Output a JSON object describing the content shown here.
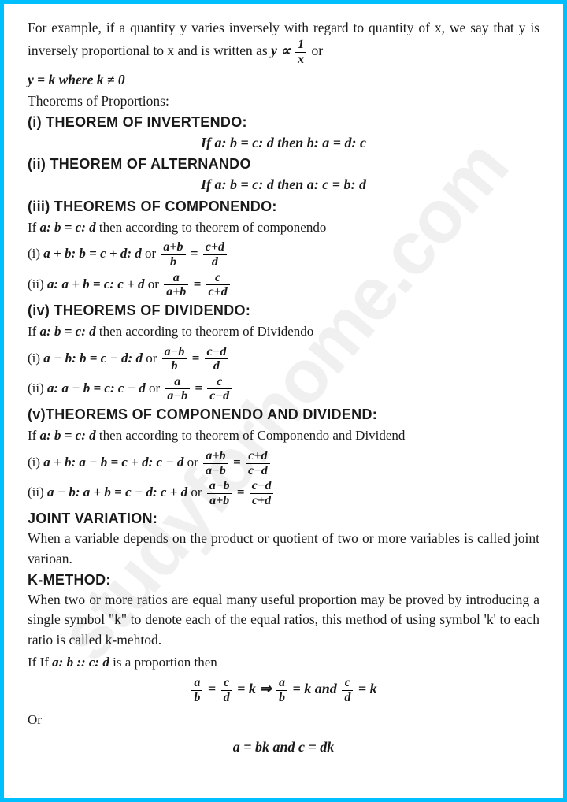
{
  "intro": "For example, if a quantity y varies inversely with regard to quantity of x, we say that y is inversely proportional to x and is written as",
  "intro_tail": " or",
  "strike": "y = k where k ≠ 0",
  "subhead_proportions": "Theorems of Proportions:",
  "t1": {
    "h": "(i) THEOREM OF INVERTENDO:",
    "f": "If a: b = c: d  then  b: a = d: c"
  },
  "t2": {
    "h": "(ii) THEOREM OF ALTERNANDO",
    "f": "If a: b = c: d  then  a: c = b: d"
  },
  "t3": {
    "h": "(iii) THEOREMS OF COMPONENDO:",
    "lead": "If ",
    "cond": "a: b = c: d",
    "lead2": " then according to theorem of componendo",
    "i1a": "(i) ",
    "i1b": "a + b: b = c + d: d",
    "or": " or  ",
    "i2a": "(ii) ",
    "i2b": "a: a + b = c: c + d"
  },
  "t4": {
    "h": "(iv) THEOREMS OF DIVIDENDO:",
    "lead": "If ",
    "cond": "a: b = c: d",
    "lead2": " then according to theorem of Dividendo",
    "i1a": "(i) ",
    "i1b": "a − b: b = c − d: d",
    "i2a": "(ii) ",
    "i2b": "a: a − b = c: c − d"
  },
  "t5": {
    "h": "(v)THEOREMS OF COMPONENDO AND DIVIDEND:",
    "lead": "If ",
    "cond": "a: b = c: d",
    "lead2": " then according to theorem of Componendo and Dividend",
    "i1a": "(i) ",
    "i1b": "a + b: a − b = c + d: c − d",
    "i2a": "(ii) ",
    "i2b": "a − b: a + b = c − d: c + d"
  },
  "jv": {
    "h": "JOINT VARIATION:",
    "p": "When a variable depends on the product or quotient of two or more variables is called joint varioan."
  },
  "km": {
    "h": "K-METHOD:",
    "p": "When two or more ratios are equal many useful proportion may be proved by introducing a single symbol \"k\" to denote each of the equal ratios, this method of using symbol 'k' to each ratio is called k-mehtod.",
    "if": "If If ",
    "cond": "a: b :: c: d",
    "tail": " is a proportion then",
    "or": "Or",
    "f2": "a = bk and c = dk"
  },
  "fr": {
    "ab": {
      "n": "a+b",
      "d": "b"
    },
    "cd": {
      "n": "c+d",
      "d": "d"
    },
    "aab": {
      "n": "a",
      "d": "a+b"
    },
    "ccd": {
      "n": "c",
      "d": "c+d"
    },
    "amb": {
      "n": "a−b",
      "d": "b"
    },
    "cmd": {
      "n": "c−d",
      "d": "d"
    },
    "aamb": {
      "n": "a",
      "d": "a−b"
    },
    "ccmd": {
      "n": "c",
      "d": "c−d"
    },
    "abamb": {
      "n": "a+b",
      "d": "a−b"
    },
    "cdcmd": {
      "n": "c+d",
      "d": "c−d"
    },
    "ambab": {
      "n": "a−b",
      "d": "a+b"
    },
    "cmdcd": {
      "n": "c−d",
      "d": "c+d"
    },
    "a_b": {
      "n": "a",
      "d": "b"
    },
    "c_d": {
      "n": "c",
      "d": "d"
    },
    "one_x": {
      "n": "1",
      "d": "x"
    }
  },
  "eq": " = ",
  "arrow": " ⇒ ",
  "k": " = k",
  "and": " and ",
  "yprop": "y ∝ ",
  "watermark": "studyforhome.com"
}
